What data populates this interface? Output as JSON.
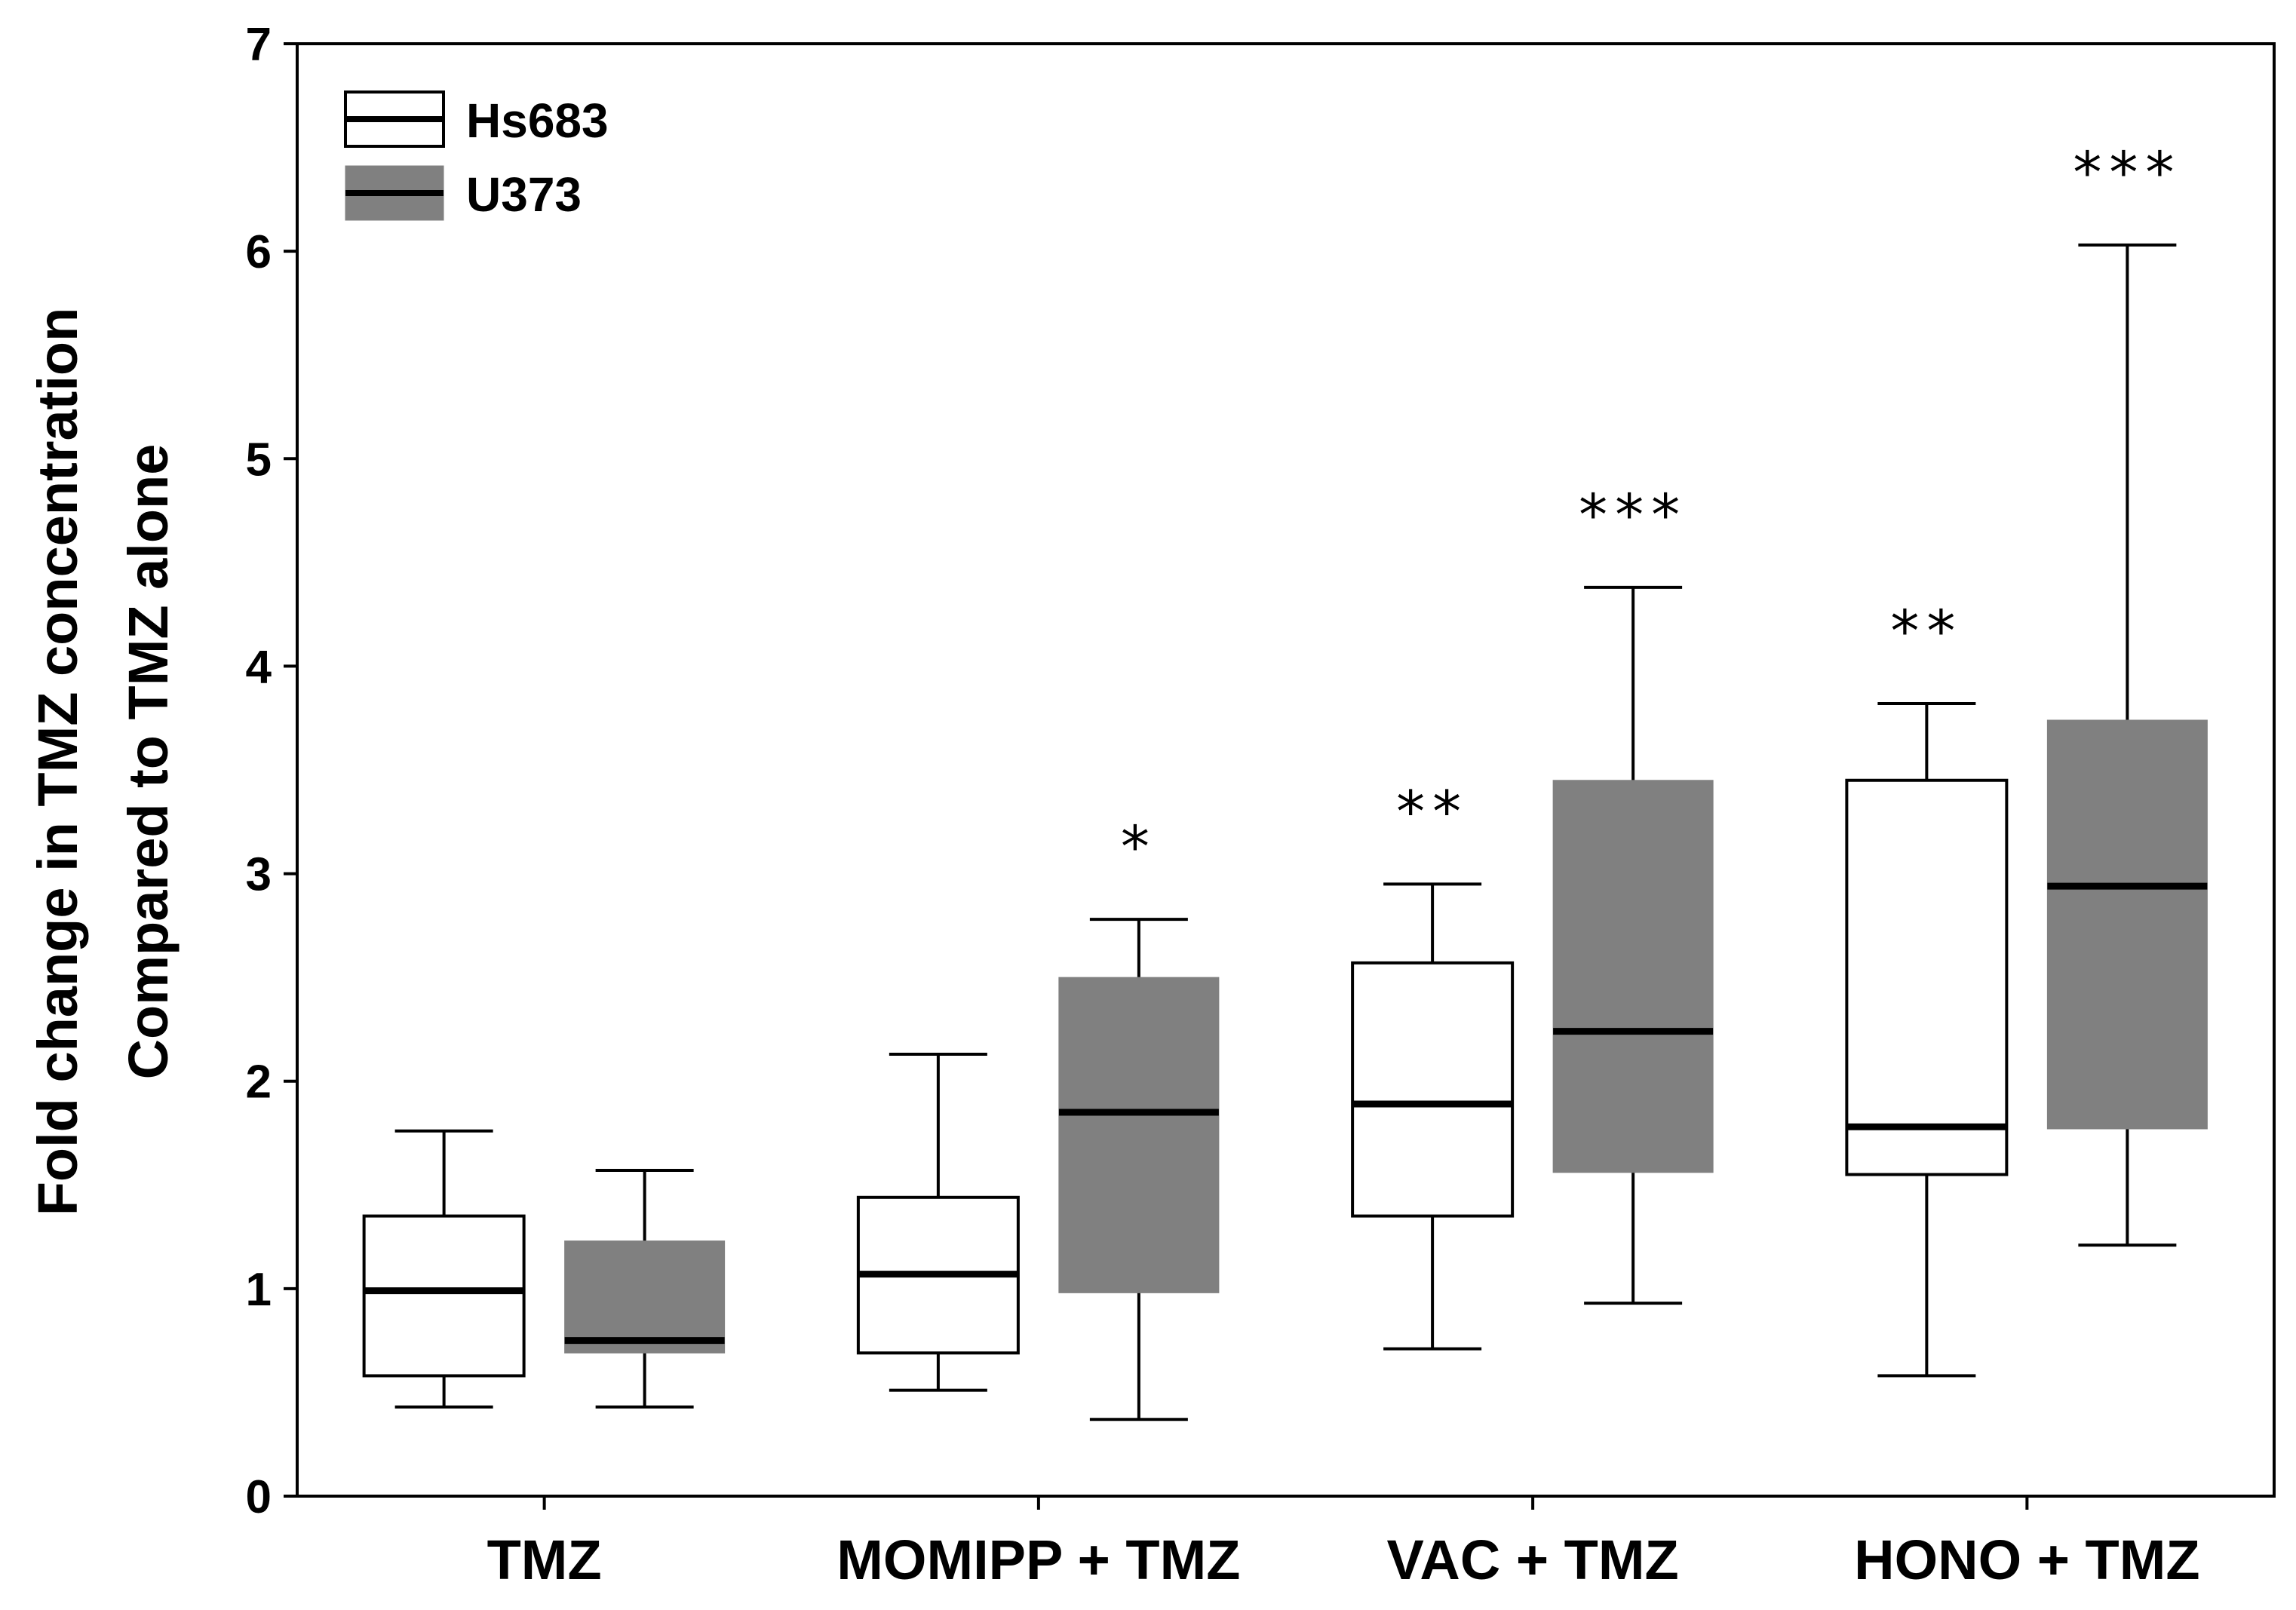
{
  "chart_data": {
    "type": "boxplot",
    "title": "",
    "xlabel": "",
    "ylabel": [
      "Fold change in TMZ concentration",
      "Compared to TMZ  alone"
    ],
    "ylim": [
      0,
      7
    ],
    "yticks": [
      0,
      1,
      2,
      3,
      4,
      5,
      6,
      7
    ],
    "grid": false,
    "legend_position": "top-left",
    "categories": [
      "TMZ",
      "MOMIPP + TMZ",
      "VAC + TMZ",
      "HONO + TMZ"
    ],
    "series": [
      {
        "name": "Hs683",
        "color": "#ffffff",
        "boxes": [
          {
            "whisker_low": 0.43,
            "q1": 0.58,
            "median": 0.99,
            "q3": 1.35,
            "whisker_high": 1.76,
            "significance": ""
          },
          {
            "whisker_low": 0.51,
            "q1": 0.69,
            "median": 1.07,
            "q3": 1.44,
            "whisker_high": 2.13,
            "significance": ""
          },
          {
            "whisker_low": 0.71,
            "q1": 1.35,
            "median": 1.89,
            "q3": 2.57,
            "whisker_high": 2.95,
            "significance": "**"
          },
          {
            "whisker_low": 0.58,
            "q1": 1.55,
            "median": 1.78,
            "q3": 3.45,
            "whisker_high": 3.82,
            "significance": "**"
          }
        ]
      },
      {
        "name": "U373",
        "color": "#808080",
        "boxes": [
          {
            "whisker_low": 0.43,
            "q1": 0.69,
            "median": 0.75,
            "q3": 1.23,
            "whisker_high": 1.57,
            "significance": ""
          },
          {
            "whisker_low": 0.37,
            "q1": 0.98,
            "median": 1.85,
            "q3": 2.5,
            "whisker_high": 2.78,
            "significance": "*"
          },
          {
            "whisker_low": 0.93,
            "q1": 1.56,
            "median": 2.24,
            "q3": 3.45,
            "whisker_high": 4.38,
            "significance": "***"
          },
          {
            "whisker_low": 1.21,
            "q1": 1.77,
            "median": 2.94,
            "q3": 3.74,
            "whisker_high": 6.03,
            "significance": "***"
          }
        ]
      }
    ]
  }
}
